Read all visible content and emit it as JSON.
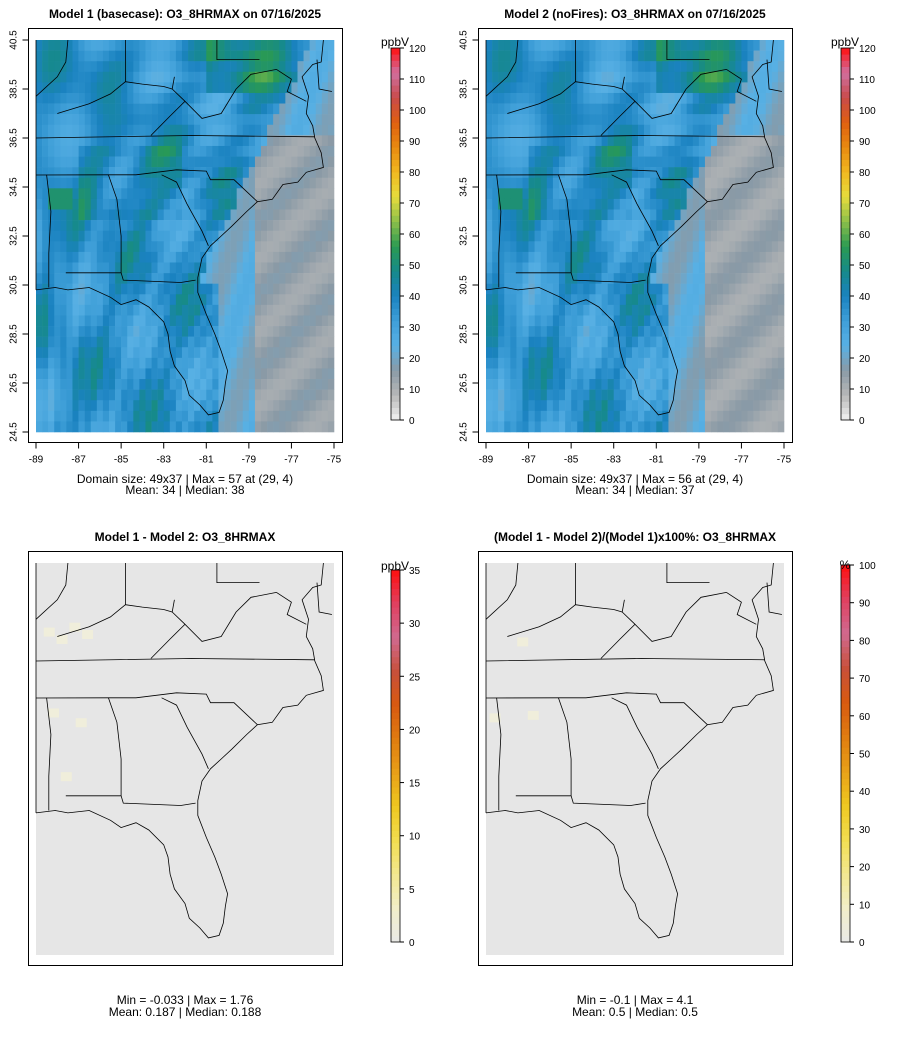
{
  "chart_data": [
    {
      "type": "heatmap",
      "title": "Model 1 (basecase): O3_8HRMAX on 07/16/2025",
      "unit": "ppbV",
      "x_ticks": [
        "-89",
        "-87",
        "-85",
        "-83",
        "-81",
        "-79",
        "-77",
        "-75"
      ],
      "y_ticks": [
        "24.5",
        "26.5",
        "28.5",
        "30.5",
        "32.5",
        "34.5",
        "36.5",
        "38.5",
        "40.5"
      ],
      "xlim": [
        -89,
        -75
      ],
      "ylim": [
        24.5,
        40.5
      ],
      "colorbar": {
        "min": 0,
        "max": 120,
        "ticks": [
          "0",
          "10",
          "20",
          "30",
          "40",
          "50",
          "60",
          "70",
          "80",
          "90",
          "100",
          "110",
          "120"
        ]
      },
      "stats": {
        "line1": "Domain size: 49x37 | Max = 57 at (29, 4)",
        "line2": "Mean: 34 |  Median: 38"
      },
      "field": "ozone"
    },
    {
      "type": "heatmap",
      "title": "Model 2 (noFires): O3_8HRMAX on 07/16/2025",
      "unit": "ppbV",
      "x_ticks": [
        "-89",
        "-87",
        "-85",
        "-83",
        "-81",
        "-79",
        "-77",
        "-75"
      ],
      "y_ticks": [
        "24.5",
        "26.5",
        "28.5",
        "30.5",
        "32.5",
        "34.5",
        "36.5",
        "38.5",
        "40.5"
      ],
      "xlim": [
        -89,
        -75
      ],
      "ylim": [
        24.5,
        40.5
      ],
      "colorbar": {
        "min": 0,
        "max": 120,
        "ticks": [
          "0",
          "10",
          "20",
          "30",
          "40",
          "50",
          "60",
          "70",
          "80",
          "90",
          "100",
          "110",
          "120"
        ]
      },
      "stats": {
        "line1": "Domain size: 49x37 | Max = 56 at (29, 4)",
        "line2": "Mean: 34 |  Median: 37"
      },
      "field": "ozone"
    },
    {
      "type": "heatmap",
      "title": "Model 1 - Model 2: O3_8HRMAX",
      "unit": "ppbV",
      "colorbar": {
        "min": 0,
        "max": 35,
        "ticks": [
          "0",
          "5",
          "10",
          "15",
          "20",
          "25",
          "30",
          "35"
        ]
      },
      "stats": {
        "line1": "Min = -0.033 | Max = 1.76",
        "line2": "Mean: 0.187 |  Median: 0.188"
      },
      "field": "difference"
    },
    {
      "type": "heatmap",
      "title": "(Model 1 - Model 2)/(Model 1)x100%: O3_8HRMAX",
      "unit": "%",
      "colorbar": {
        "min": 0,
        "max": 100,
        "ticks": [
          "0",
          "10",
          "20",
          "30",
          "40",
          "50",
          "60",
          "70",
          "80",
          "90",
          "100"
        ]
      },
      "stats": {
        "line1": "Min = -0.1 | Max = 4.1",
        "line2": "Mean: 0.5 |  Median: 0.5"
      },
      "field": "difference"
    }
  ],
  "colors": {
    "ozone_scale": [
      "#f2f2f2",
      "#b8b8b8",
      "#8a9aa6",
      "#58b0e4",
      "#3f9fd8",
      "#1a82c0",
      "#168a8a",
      "#2a9a52",
      "#8cbf4a",
      "#e6dc3c",
      "#f0b820",
      "#e88a10",
      "#e06010",
      "#c94a4a",
      "#d070a0",
      "#ff1010"
    ],
    "diff_scale": [
      "#e8e8e8",
      "#f2eec8",
      "#f3e890",
      "#f2de50",
      "#eec820",
      "#e8a018",
      "#e07c10",
      "#d85a10",
      "#c8503a",
      "#d06a90",
      "#e04060",
      "#ff1010"
    ],
    "ocean_gray": "#7f9fb2",
    "diff_background": "#e6e6e6"
  }
}
